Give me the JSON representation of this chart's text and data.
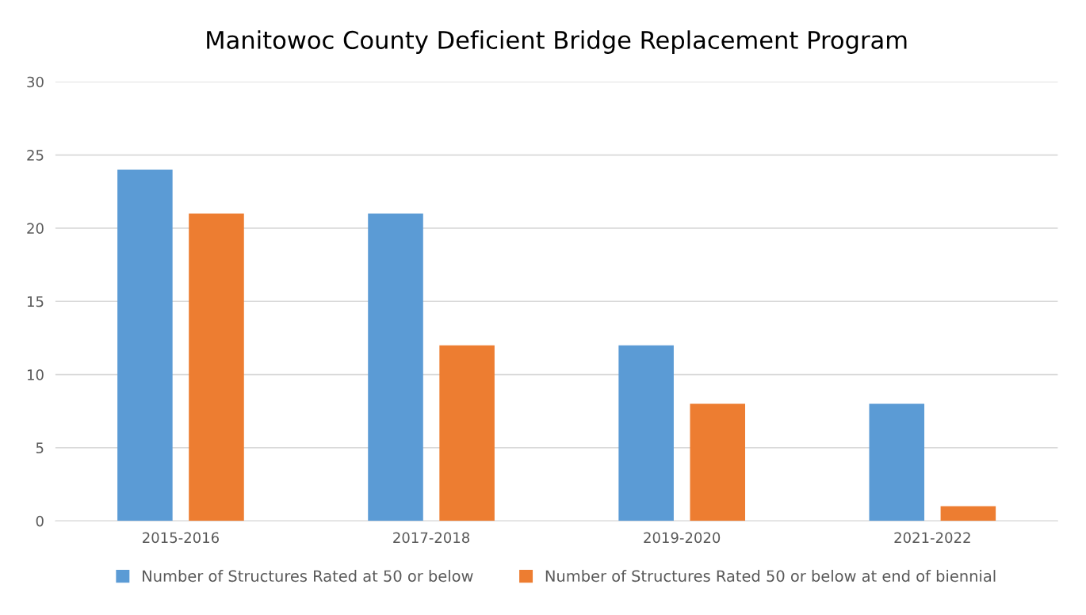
{
  "chart_data": {
    "type": "bar",
    "title": "Manitowoc County Deficient Bridge Replacement Program",
    "categories": [
      "2015-2016",
      "2017-2018",
      "2019-2020",
      "2021-2022"
    ],
    "series": [
      {
        "name": "Number of Structures Rated at 50 or below",
        "color": "#5b9bd5",
        "values": [
          24,
          21,
          12,
          8
        ]
      },
      {
        "name": "Number of Structures Rated 50 or below at end of biennial",
        "color": "#ed7d31",
        "values": [
          21,
          12,
          8,
          1
        ]
      }
    ],
    "ylim": [
      0,
      30
    ],
    "yticks": [
      0,
      5,
      10,
      15,
      20,
      25,
      30
    ],
    "grid": "y",
    "legend": "bottom"
  }
}
